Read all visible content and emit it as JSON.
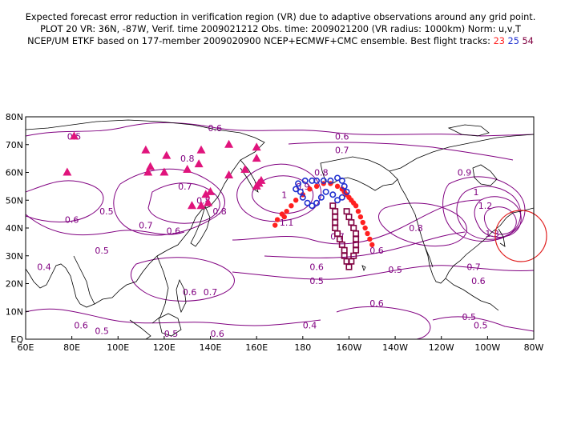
{
  "header": {
    "line1": "Expected forecast error reduction in verification region (VR) due to adaptive observations around any grid point.",
    "line2": "PLOT 20 VR: 36N, -87W, Verif. time 2009021212 Obs. time: 2009021200 (VR radius: 1000km) Norm: u,v,T",
    "line3_prefix": "NCEP/UM ETKF based on 177-member 2009020900 NCEP+ECMWF+CMC ensemble. Best flight tracks:",
    "track_a": "23",
    "track_b": "25",
    "track_c": "54"
  },
  "map": {
    "lat_labels": [
      "80N",
      "70N",
      "60N",
      "50N",
      "40N",
      "30N",
      "20N",
      "10N",
      "EQ"
    ],
    "lon_labels": [
      "60E",
      "80E",
      "100E",
      "120E",
      "140E",
      "160E",
      "180",
      "160W",
      "140W",
      "120W",
      "100W",
      "80W"
    ],
    "contour_labels": [
      {
        "text": "0.5",
        "lat": 73,
        "lon": 81
      },
      {
        "text": "0.6",
        "lat": 76,
        "lon": 142
      },
      {
        "text": "0.6",
        "lat": 73,
        "lon": 197
      },
      {
        "text": "0.7",
        "lat": 68,
        "lon": 197
      },
      {
        "text": "0.8",
        "lat": 65,
        "lon": 130
      },
      {
        "text": "0.9",
        "lat": 60,
        "lon": 250
      },
      {
        "text": "0.8",
        "lat": 60,
        "lon": 188
      },
      {
        "text": "0.9",
        "lat": 55,
        "lon": 180
      },
      {
        "text": "1",
        "lat": 52,
        "lon": 172
      },
      {
        "text": "1",
        "lat": 53,
        "lon": 255
      },
      {
        "text": "1.2",
        "lat": 48,
        "lon": 259
      },
      {
        "text": "1.3",
        "lat": 38,
        "lon": 262
      },
      {
        "text": "1.1",
        "lat": 42,
        "lon": 173
      },
      {
        "text": "0.7",
        "lat": 55,
        "lon": 129
      },
      {
        "text": "0.8",
        "lat": 50,
        "lon": 137
      },
      {
        "text": "0.8",
        "lat": 46,
        "lon": 144
      },
      {
        "text": "0.7",
        "lat": 41,
        "lon": 112
      },
      {
        "text": "0.6",
        "lat": 39,
        "lon": 124
      },
      {
        "text": "0.6",
        "lat": 43,
        "lon": 80
      },
      {
        "text": "0.5",
        "lat": 46,
        "lon": 95
      },
      {
        "text": "0.5",
        "lat": 32,
        "lon": 93
      },
      {
        "text": "0.4",
        "lat": 26,
        "lon": 68
      },
      {
        "text": "0.8",
        "lat": 40,
        "lon": 229
      },
      {
        "text": "0.7",
        "lat": 37,
        "lon": 195
      },
      {
        "text": "0.6",
        "lat": 32,
        "lon": 212
      },
      {
        "text": "0.6",
        "lat": 26,
        "lon": 186
      },
      {
        "text": "0.5",
        "lat": 21,
        "lon": 186
      },
      {
        "text": "0.5",
        "lat": 25,
        "lon": 220
      },
      {
        "text": "0.7",
        "lat": 26,
        "lon": 254
      },
      {
        "text": "0.6",
        "lat": 21,
        "lon": 256
      },
      {
        "text": "0.7",
        "lat": 17,
        "lon": 140
      },
      {
        "text": "0.6",
        "lat": 17,
        "lon": 131
      },
      {
        "text": "0.6",
        "lat": 13,
        "lon": 212
      },
      {
        "text": "0.5",
        "lat": 8,
        "lon": 252
      },
      {
        "text": "0.5",
        "lat": 5,
        "lon": 257
      },
      {
        "text": "0.4",
        "lat": 5,
        "lon": 183
      },
      {
        "text": "0.6",
        "lat": 5,
        "lon": 84
      },
      {
        "text": "0.5",
        "lat": 3,
        "lon": 93
      },
      {
        "text": "0.5",
        "lat": 2,
        "lon": 123
      },
      {
        "text": "0.6",
        "lat": 2,
        "lon": 143
      }
    ]
  },
  "colors": {
    "contour": "#800080",
    "coast": "#000000",
    "triangle": "#e0147c",
    "track_23": "#ff2020",
    "track_25": "#2030d0",
    "track_54": "#800040",
    "circle": "#e02020"
  },
  "observations": {
    "triangles": [
      [
        73,
        81
      ],
      [
        68,
        112
      ],
      [
        66,
        121
      ],
      [
        68,
        136
      ],
      [
        70,
        148
      ],
      [
        69,
        160
      ],
      [
        62,
        114
      ],
      [
        60,
        120
      ],
      [
        61,
        130
      ],
      [
        63,
        135
      ],
      [
        61,
        155
      ],
      [
        60,
        113
      ],
      [
        60,
        78
      ],
      [
        59,
        148
      ],
      [
        55,
        160
      ],
      [
        56,
        161
      ],
      [
        53,
        140
      ],
      [
        52,
        138
      ],
      [
        48,
        132
      ],
      [
        48,
        136
      ],
      [
        49,
        139
      ],
      [
        57,
        162
      ],
      [
        65,
        160
      ]
    ],
    "track_23": [
      [
        44,
        172
      ],
      [
        46,
        173
      ],
      [
        48,
        175
      ],
      [
        50,
        177
      ],
      [
        52,
        180
      ],
      [
        54,
        183
      ],
      [
        55,
        186
      ],
      [
        56,
        189
      ],
      [
        56,
        192
      ],
      [
        55,
        195
      ],
      [
        54,
        197
      ],
      [
        53,
        198
      ],
      [
        52,
        199
      ],
      [
        51,
        200
      ],
      [
        50,
        201
      ],
      [
        49,
        202
      ],
      [
        48,
        203
      ],
      [
        46,
        204
      ],
      [
        44,
        205
      ],
      [
        42,
        206
      ],
      [
        40,
        207
      ],
      [
        38,
        208
      ],
      [
        36,
        209
      ],
      [
        34,
        210
      ],
      [
        45,
        171
      ],
      [
        43,
        169
      ],
      [
        41,
        168
      ]
    ],
    "track_25": [
      [
        54,
        177
      ],
      [
        56,
        178
      ],
      [
        57,
        181
      ],
      [
        57,
        184
      ],
      [
        57,
        186
      ],
      [
        57,
        189
      ],
      [
        57,
        192
      ],
      [
        58,
        195
      ],
      [
        57,
        197
      ],
      [
        55,
        198
      ],
      [
        53,
        199
      ],
      [
        51,
        197
      ],
      [
        50,
        195
      ],
      [
        52,
        193
      ],
      [
        53,
        190
      ],
      [
        51,
        188
      ],
      [
        49,
        186
      ],
      [
        48,
        184
      ],
      [
        49,
        182
      ],
      [
        51,
        180
      ],
      [
        53,
        179
      ]
    ],
    "track_54": [
      [
        48,
        193
      ],
      [
        46,
        194
      ],
      [
        44,
        194
      ],
      [
        42,
        194
      ],
      [
        40,
        194
      ],
      [
        38,
        195
      ],
      [
        36,
        196
      ],
      [
        34,
        197
      ],
      [
        32,
        198
      ],
      [
        30,
        198
      ],
      [
        28,
        199
      ],
      [
        26,
        200
      ],
      [
        28,
        201
      ],
      [
        30,
        202
      ],
      [
        32,
        203
      ],
      [
        34,
        203
      ],
      [
        36,
        203
      ],
      [
        38,
        203
      ],
      [
        40,
        202
      ],
      [
        42,
        201
      ],
      [
        44,
        200
      ],
      [
        46,
        199
      ]
    ]
  }
}
